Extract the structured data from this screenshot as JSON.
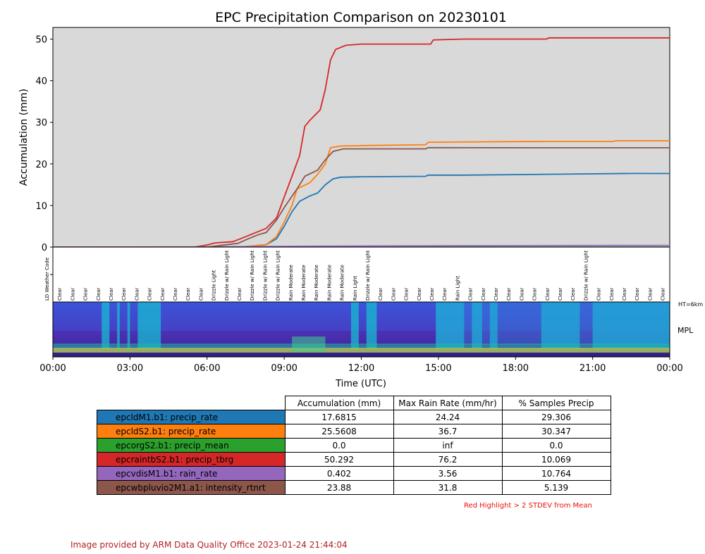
{
  "chart_data": {
    "type": "line",
    "title": "EPC Precipitation Comparison on 20230101",
    "xlabel": "Time (UTC)",
    "ylabel": "Accumulation (mm)",
    "xlim": [
      0,
      24
    ],
    "ylim": [
      0,
      52.8
    ],
    "x_tick_labels": [
      "00:00",
      "03:00",
      "06:00",
      "09:00",
      "12:00",
      "15:00",
      "18:00",
      "21:00",
      "00:00"
    ],
    "y_ticks": [
      0,
      10,
      20,
      30,
      40,
      50
    ],
    "plot_background": "#d9d9d9",
    "series": [
      {
        "color": "#1f77b4",
        "points": [
          [
            0,
            0
          ],
          [
            6,
            0
          ],
          [
            7.5,
            0.1
          ],
          [
            8.3,
            0.6
          ],
          [
            8.7,
            2
          ],
          [
            9,
            5
          ],
          [
            9.3,
            8.5
          ],
          [
            9.6,
            11
          ],
          [
            10,
            12.3
          ],
          [
            10.3,
            13
          ],
          [
            10.6,
            15
          ],
          [
            10.9,
            16.4
          ],
          [
            11.2,
            16.8
          ],
          [
            12,
            16.9
          ],
          [
            14.5,
            17
          ],
          [
            14.6,
            17.3
          ],
          [
            16,
            17.3
          ],
          [
            19.2,
            17.5
          ],
          [
            22.5,
            17.7
          ],
          [
            24,
            17.68
          ]
        ]
      },
      {
        "color": "#ff7f0e",
        "points": [
          [
            0,
            0
          ],
          [
            6,
            0
          ],
          [
            7.5,
            0.1
          ],
          [
            8.3,
            0.6
          ],
          [
            8.7,
            2.5
          ],
          [
            9,
            6
          ],
          [
            9.3,
            10
          ],
          [
            9.5,
            14
          ],
          [
            10,
            15.5
          ],
          [
            10.3,
            17.5
          ],
          [
            10.6,
            20
          ],
          [
            10.8,
            23.9
          ],
          [
            11.2,
            24.3
          ],
          [
            12,
            24.4
          ],
          [
            14.5,
            24.6
          ],
          [
            14.6,
            25.2
          ],
          [
            19,
            25.4
          ],
          [
            21.8,
            25.4
          ],
          [
            21.9,
            25.56
          ],
          [
            24,
            25.56
          ]
        ]
      },
      {
        "color": "#2ca02c",
        "points": [
          [
            0,
            0
          ],
          [
            24,
            0
          ]
        ]
      },
      {
        "color": "#d62728",
        "points": [
          [
            0,
            0
          ],
          [
            5.5,
            0
          ],
          [
            6,
            0.5
          ],
          [
            6.3,
            1
          ],
          [
            7,
            1.3
          ],
          [
            7.3,
            2
          ],
          [
            7.9,
            3.5
          ],
          [
            8.3,
            4.5
          ],
          [
            8.7,
            7
          ],
          [
            9,
            12
          ],
          [
            9.3,
            17
          ],
          [
            9.6,
            22
          ],
          [
            9.8,
            29
          ],
          [
            10,
            30.5
          ],
          [
            10.4,
            33
          ],
          [
            10.6,
            38
          ],
          [
            10.8,
            45
          ],
          [
            11,
            47.5
          ],
          [
            11.4,
            48.5
          ],
          [
            12,
            48.8
          ],
          [
            14.7,
            48.8
          ],
          [
            14.8,
            49.8
          ],
          [
            16,
            50
          ],
          [
            19.2,
            50
          ],
          [
            19.3,
            50.3
          ],
          [
            24,
            50.29
          ]
        ]
      },
      {
        "color": "#9467bd",
        "points": [
          [
            0,
            0
          ],
          [
            6,
            0.05
          ],
          [
            10,
            0.2
          ],
          [
            15,
            0.3
          ],
          [
            20,
            0.38
          ],
          [
            24,
            0.402
          ]
        ]
      },
      {
        "color": "#8c564b",
        "points": [
          [
            0,
            0
          ],
          [
            6,
            0
          ],
          [
            6.4,
            0.3
          ],
          [
            7.2,
            0.9
          ],
          [
            7.6,
            2
          ],
          [
            8,
            3
          ],
          [
            8.3,
            3.5
          ],
          [
            8.7,
            6.5
          ],
          [
            9,
            9.5
          ],
          [
            9.5,
            14
          ],
          [
            9.8,
            17
          ],
          [
            10.3,
            18.5
          ],
          [
            10.6,
            21
          ],
          [
            10.9,
            23
          ],
          [
            11.3,
            23.6
          ],
          [
            12,
            23.6
          ],
          [
            14.5,
            23.6
          ],
          [
            14.6,
            23.9
          ],
          [
            24,
            23.88
          ]
        ]
      }
    ]
  },
  "weather_codes": {
    "title": "LD Weather Code",
    "labels": [
      "Clear",
      "Clear",
      "Clear",
      "Clear",
      "Clear",
      "Clear",
      "Clear",
      "Clear",
      "Clear",
      "Clear",
      "Clear",
      "Clear",
      "Drizzle Light",
      "Drizzle w/ Rain Light",
      "Clear",
      "Drizzle w/ Rain Light",
      "Drizzle w/ Rain Light",
      "Drizzle w/ Rain Light",
      "Rain Moderate",
      "Rain Moderate",
      "Rain Moderate",
      "Rain Moderate",
      "Rain Moderate",
      "Rain Light",
      "Drizzle w/ Rain Light",
      "Clear",
      "Clear",
      "Clear",
      "Clear",
      "Clear",
      "Clear",
      "Rain Light",
      "Clear",
      "Clear",
      "Clear",
      "Clear",
      "Clear",
      "Clear",
      "Clear",
      "Clear",
      "Clear",
      "Drizzle w/ Rain Light",
      "Clear",
      "Clear",
      "Clear",
      "Clear",
      "Clear",
      "Clear",
      "Clear",
      "Clear",
      "Rain Light",
      "Clear",
      "Clear",
      "Clear",
      "Clear",
      "Clear",
      "Clear"
    ]
  },
  "mpl_panel": {
    "label": "MPL",
    "height_label": "HT=6km"
  },
  "stats_table": {
    "headers": [
      "Accumulation (mm)",
      "Max Rain Rate (mm/hr)",
      "% Samples Precip"
    ],
    "rows": [
      {
        "label": "epcldM1.b1: precip_rate",
        "color": "#1f77b4",
        "values": [
          "17.6815",
          "24.24",
          "29.306"
        ]
      },
      {
        "label": "epcldS2.b1: precip_rate",
        "color": "#ff7f0e",
        "values": [
          "25.5608",
          "36.7",
          "30.347"
        ]
      },
      {
        "label": "epcorgS2.b1: precip_mean",
        "color": "#2ca02c",
        "values": [
          "0.0",
          "inf",
          "0.0"
        ]
      },
      {
        "label": "epcraintbS2.b1: precip_tbrg",
        "color": "#d62728",
        "values": [
          "50.292",
          "76.2",
          "10.069"
        ]
      },
      {
        "label": "epcvdisM1.b1: rain_rate",
        "color": "#9467bd",
        "values": [
          "0.402",
          "3.56",
          "10.764"
        ]
      },
      {
        "label": "epcwbpluvio2M1.a1: intensity_rtnrt",
        "color": "#8c564b",
        "values": [
          "23.88",
          "31.8",
          "5.139"
        ]
      }
    ]
  },
  "note": "Red Highlight > 2 STDEV from Mean",
  "credit": "Image provided by ARM Data Quality Office 2023-01-24 21:44:04"
}
